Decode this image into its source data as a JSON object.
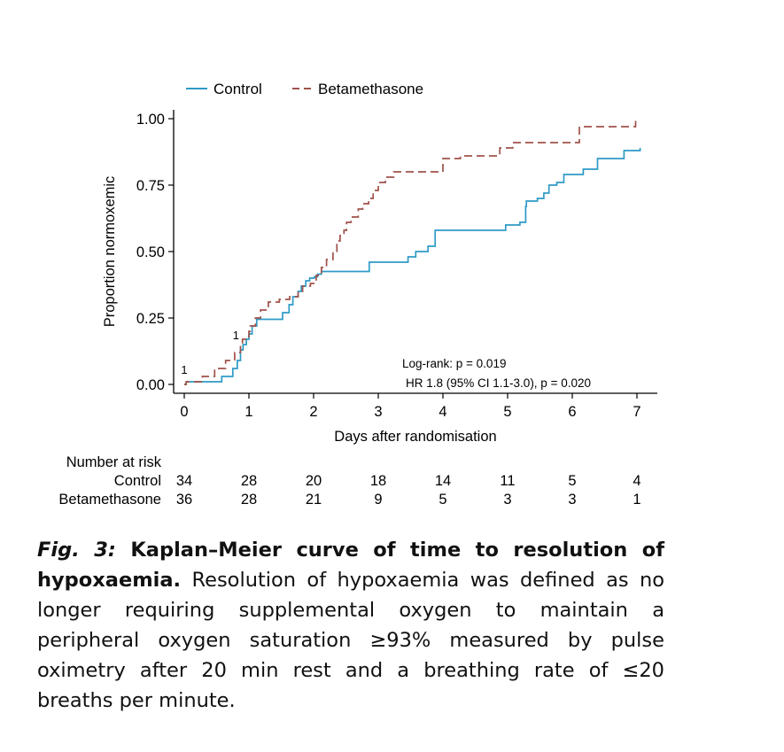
{
  "chart_data": {
    "type": "line",
    "legend": {
      "placement": "top-left",
      "entries": [
        {
          "label": "Control",
          "color": "#2e9ac6",
          "style": "solid"
        },
        {
          "label": "Betamethasone",
          "color": "#a0524a",
          "style": "dashed"
        }
      ]
    },
    "ylabel": "Proportion normoxemic",
    "xlabel": "Days after randomisation",
    "xlim": [
      -0.15,
      7.3
    ],
    "ylim": [
      0,
      1
    ],
    "xticks": [
      "0",
      "1",
      "2",
      "3",
      "4",
      "5",
      "6",
      "7"
    ],
    "yticks": [
      "0.00",
      "0.25",
      "0.50",
      "0.75",
      "1.00"
    ],
    "series": [
      {
        "name": "Control",
        "color": "#2e9ac6",
        "style": "solid",
        "x": [
          0,
          0.03,
          0.58,
          0.75,
          0.82,
          0.87,
          0.91,
          0.96,
          1.0,
          1.05,
          1.12,
          1.52,
          1.62,
          1.68,
          1.76,
          1.81,
          1.88,
          1.94,
          2.01,
          2.06,
          2.12,
          2.86,
          3.46,
          3.58,
          3.77,
          3.88,
          4.75,
          4.97,
          5.19,
          5.28,
          5.29,
          5.46,
          5.56,
          5.64,
          5.76,
          5.87,
          6.17,
          6.39,
          6.49,
          6.8,
          7.05
        ],
        "y": [
          0.0,
          0.01,
          0.03,
          0.06,
          0.09,
          0.13,
          0.15,
          0.17,
          0.19,
          0.22,
          0.245,
          0.27,
          0.3,
          0.33,
          0.35,
          0.37,
          0.39,
          0.4,
          0.405,
          0.415,
          0.425,
          0.46,
          0.48,
          0.5,
          0.52,
          0.58,
          0.58,
          0.6,
          0.61,
          0.67,
          0.69,
          0.7,
          0.72,
          0.75,
          0.76,
          0.79,
          0.81,
          0.85,
          0.85,
          0.88,
          0.89
        ]
      },
      {
        "name": "Betamethasone",
        "color": "#a0524a",
        "style": "dashed",
        "x": [
          0,
          0.03,
          0.28,
          0.47,
          0.64,
          0.78,
          0.87,
          0.9,
          1.0,
          1.02,
          1.1,
          1.18,
          1.3,
          1.47,
          1.63,
          1.76,
          1.83,
          1.95,
          2.04,
          2.12,
          2.2,
          2.3,
          2.36,
          2.41,
          2.47,
          2.51,
          2.58,
          2.69,
          2.76,
          2.85,
          2.92,
          3.0,
          3.11,
          3.24,
          3.79,
          4.0,
          4.27,
          4.51,
          4.88,
          5.08,
          5.98,
          6.11,
          6.98
        ],
        "y": [
          0.0,
          0.01,
          0.03,
          0.06,
          0.09,
          0.12,
          0.15,
          0.17,
          0.2,
          0.22,
          0.25,
          0.28,
          0.31,
          0.32,
          0.33,
          0.35,
          0.37,
          0.38,
          0.41,
          0.44,
          0.47,
          0.5,
          0.54,
          0.56,
          0.58,
          0.61,
          0.63,
          0.66,
          0.68,
          0.7,
          0.73,
          0.76,
          0.78,
          0.8,
          0.8,
          0.85,
          0.86,
          0.86,
          0.89,
          0.91,
          0.91,
          0.97,
          1.0
        ]
      }
    ],
    "censor_labels": [
      {
        "text": "1",
        "x": 0.0,
        "y": 0.04
      },
      {
        "text": "1",
        "x": 0.8,
        "y": 0.17
      }
    ],
    "annotations": [
      "Log-rank: p = 0.019",
      "HR 1.8 (95% CI 1.1-3.0), p = 0.020"
    ],
    "risk_table": {
      "title": "Number at risk",
      "rows": [
        {
          "label": "Control",
          "values": [
            "34",
            "28",
            "20",
            "18",
            "14",
            "11",
            "5",
            "4"
          ]
        },
        {
          "label": "Betamethasone",
          "values": [
            "36",
            "28",
            "21",
            "9",
            "5",
            "3",
            "3",
            "1"
          ]
        }
      ]
    }
  },
  "caption": {
    "fig_label": "Fig. 3:",
    "title": "Kaplan–Meier curve of time to resolution of hypoxaemia.",
    "text": "Resolution of hypoxaemia was defined as no longer requiring supplemental oxygen to maintain a peripheral oxygen saturation ≥93% measured by pulse oximetry after 20 min rest and a breathing rate of ≤20 breaths per minute."
  }
}
